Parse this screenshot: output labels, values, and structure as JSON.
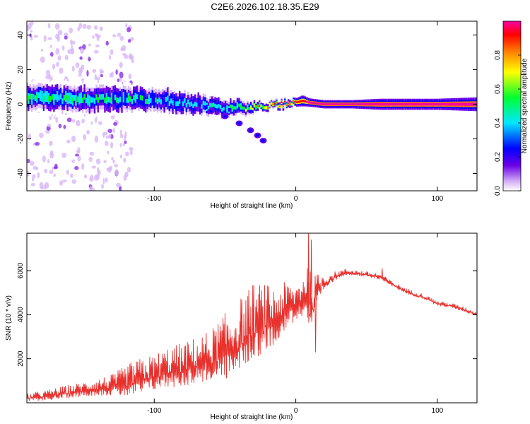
{
  "page": {
    "title": "C2E6.2026.102.18.35.E29"
  },
  "chart_data": [
    {
      "type": "heatmap",
      "title": "",
      "xlabel": "Height of straight line (km)",
      "ylabel": "Frequency (Hz)",
      "xlim": [
        -190,
        128
      ],
      "ylim": [
        -50,
        48
      ],
      "xticks": [
        -100,
        0,
        100
      ],
      "yticks": [
        -40,
        -20,
        0,
        20,
        40
      ],
      "colorbar": {
        "label": "Normalized spectral amplitude",
        "range": [
          0.0,
          1.0
        ],
        "ticks": [
          0.0,
          0.2,
          0.4,
          0.6,
          0.8
        ],
        "tick_labels": [
          "0.0",
          "0.2",
          "0.4",
          "0.6",
          "0.8"
        ],
        "colors": [
          "#ffffff",
          "#d8b8f8",
          "#6a00e8",
          "#0000ff",
          "#00e8ff",
          "#00ff30",
          "#ffff00",
          "#ff8000",
          "#ff0000",
          "#ff00a0"
        ]
      },
      "ridge": {
        "x": [
          -190,
          -160,
          -130,
          -110,
          -90,
          -70,
          -50,
          -35,
          -25,
          -10,
          0,
          5,
          10,
          20,
          40,
          60,
          80,
          100,
          128
        ],
        "freq": [
          4,
          3,
          3,
          3,
          2,
          0,
          -2,
          -2,
          -1,
          0,
          1,
          2,
          1,
          0,
          0,
          0,
          0,
          0,
          0
        ],
        "width": [
          9,
          9,
          9,
          8,
          8,
          7,
          6,
          5,
          3,
          3,
          3,
          4,
          3,
          3,
          3,
          4,
          4,
          4,
          5
        ],
        "amplitude": [
          0.55,
          0.55,
          0.5,
          0.5,
          0.45,
          0.45,
          0.5,
          0.55,
          0.75,
          0.8,
          0.85,
          0.85,
          0.95,
          0.95,
          0.95,
          0.95,
          0.95,
          0.95,
          0.95
        ]
      },
      "branch": {
        "x": [
          -60,
          -50,
          -40,
          -32,
          -27,
          -23
        ],
        "freq": [
          -4,
          -7,
          -11,
          -15,
          -18,
          -21
        ]
      }
    },
    {
      "type": "line",
      "title": "",
      "xlabel": "Height of straight line (km)",
      "ylabel": "SNR (10 * v/v)",
      "xlim": [
        -190,
        128
      ],
      "ylim": [
        0,
        7700
      ],
      "xticks": [
        -100,
        0,
        100
      ],
      "yticks": [
        2000,
        4000,
        6000
      ],
      "color": "#e8302c",
      "series": [
        {
          "name": "SNR",
          "x": [
            -190,
            -175,
            -160,
            -145,
            -130,
            -115,
            -100,
            -90,
            -80,
            -70,
            -60,
            -50,
            -45,
            -40,
            -35,
            -30,
            -25,
            -20,
            -15,
            -10,
            -5,
            0,
            5,
            8,
            10,
            12,
            15,
            20,
            25,
            30,
            35,
            40,
            50,
            60,
            65,
            70,
            80,
            90,
            100,
            110,
            120,
            128
          ],
          "y": [
            200,
            300,
            450,
            600,
            700,
            900,
            1200,
            1400,
            1500,
            1700,
            1900,
            2200,
            2400,
            2700,
            3000,
            3300,
            3400,
            3500,
            3700,
            4000,
            4200,
            4400,
            4700,
            4900,
            4000,
            4300,
            5000,
            5400,
            5600,
            5800,
            5900,
            5900,
            5800,
            5700,
            5500,
            5300,
            5000,
            4800,
            4500,
            4400,
            4200,
            4000
          ],
          "noise": [
            150,
            200,
            250,
            300,
            400,
            700,
            700,
            800,
            850,
            900,
            1000,
            1300,
            1300,
            1400,
            1400,
            1500,
            1400,
            1300,
            1100,
            1000,
            900,
            700,
            900,
            1100,
            1400,
            1000,
            600,
            300,
            200,
            150,
            120,
            110,
            110,
            110,
            100,
            100,
            100,
            100,
            90,
            90,
            90,
            90
          ],
          "peaks": [
            {
              "x": 9,
              "y": 7700
            },
            {
              "x": 11,
              "y": 7400
            },
            {
              "x": 14,
              "y": 2300
            },
            {
              "x": 61,
              "y": 6100
            }
          ]
        }
      ]
    }
  ]
}
